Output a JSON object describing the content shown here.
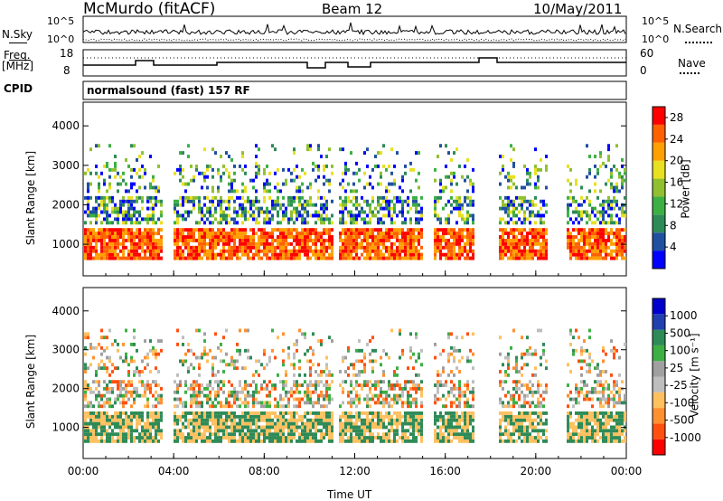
{
  "header": {
    "station": "McMurdo (fitACF)",
    "beam": "Beam 12",
    "date": "10/May/2011"
  },
  "top_panels": {
    "nsky_label": "N.Sky",
    "nsearch_label": "N.Search",
    "noise_ticks": [
      "10^5",
      "10^0"
    ],
    "freq_label_1": "Freq.",
    "freq_label_2": "[MHz]",
    "freq_ticks": [
      "18",
      "8"
    ],
    "nave_label": "Nave",
    "nave_ticks": [
      "60",
      "0"
    ],
    "cpid_label": "CPID",
    "cpid_value": "normalsound (fast) 157 RF"
  },
  "colors": {
    "power_scale": [
      "#0000ff",
      "#2050a0",
      "#2e8b57",
      "#3cb043",
      "#90c030",
      "#e8e020",
      "#ffa000",
      "#ff6000",
      "#ff0000"
    ],
    "velocity_scale": [
      "#ff0000",
      "#ff5010",
      "#ff9030",
      "#ffc060",
      "#bebebe",
      "#a0a0a0",
      "#3cb043",
      "#2e8b57",
      "#2040b0",
      "#0000cc"
    ]
  },
  "chart_data": [
    {
      "type": "heatmap",
      "title": "",
      "xlabel": "Time UT",
      "ylabel": "Slant Range [km]",
      "x_ticks": [
        "00:00",
        "04:00",
        "08:00",
        "12:00",
        "16:00",
        "20:00",
        "00:00"
      ],
      "y_ticks": [
        "1000",
        "2000",
        "3000",
        "4000"
      ],
      "ylim": [
        200,
        4600
      ],
      "colorbar_label": "Power [dB]",
      "colorbar_ticks": [
        "4",
        "8",
        "12",
        "16",
        "20",
        "24",
        "28"
      ],
      "zlim": [
        0,
        30
      ]
    },
    {
      "type": "heatmap",
      "title": "",
      "xlabel": "Time UT",
      "ylabel": "Slant Range [km]",
      "x_ticks": [
        "00:00",
        "04:00",
        "08:00",
        "12:00",
        "16:00",
        "20:00",
        "00:00"
      ],
      "y_ticks": [
        "1000",
        "2000",
        "3000",
        "4000"
      ],
      "ylim": [
        200,
        4600
      ],
      "colorbar_label": "Velocity [m s⁻¹]",
      "colorbar_ticks": [
        "1000",
        "500",
        "100",
        "25",
        "-25",
        "-100",
        "-500",
        "-1000"
      ]
    }
  ]
}
